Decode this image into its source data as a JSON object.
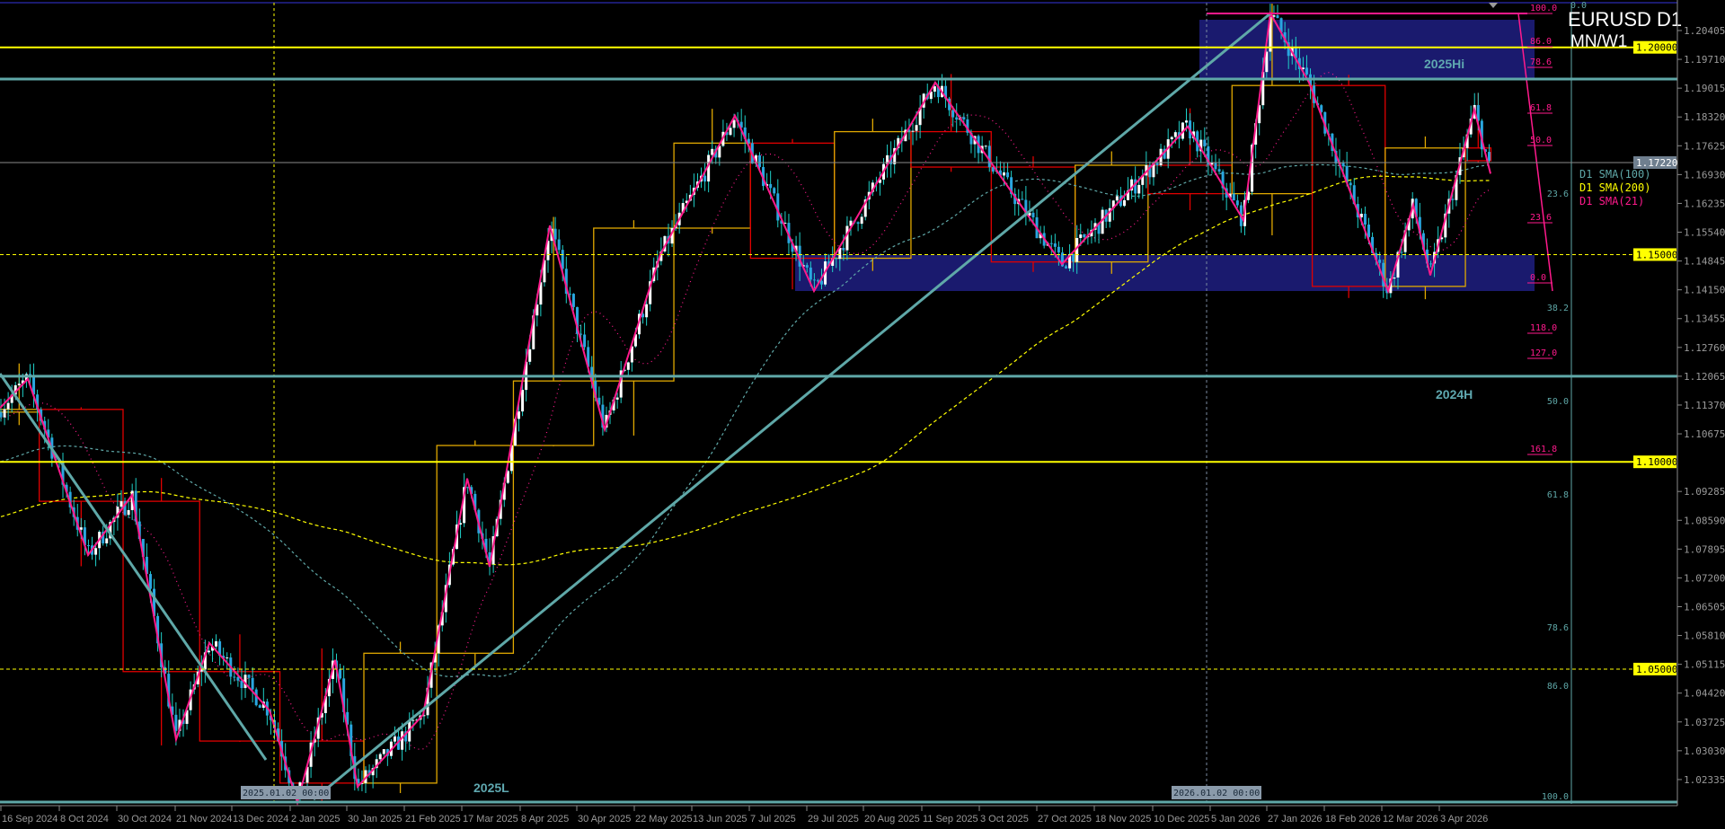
{
  "chart": {
    "symbol_title": "EURUSD D1",
    "subtitle": "MN/W1",
    "current_price": "1.17220",
    "colors": {
      "background": "#000000",
      "bull_candle": "#ffffff",
      "bear_candle": "#2aa6e0",
      "wick": "#1fd0c8",
      "zigzag": "#ff1a8c",
      "trendline": "#5fa8a8",
      "zone": "#1a1a6e",
      "level_yellow": "#ffff00",
      "month_bull": "#e0a800",
      "month_bear": "#e00000"
    }
  },
  "price_axis": {
    "labels": [
      "1.20405",
      "1.19710",
      "1.19015",
      "1.18320",
      "1.17625",
      "1.16930",
      "1.16235",
      "1.15540",
      "1.14845",
      "1.14150",
      "1.13455",
      "1.12760",
      "1.12065",
      "1.11370",
      "1.10675",
      "1.09285",
      "1.08590",
      "1.07895",
      "1.07200",
      "1.06505",
      "1.05810",
      "1.05115",
      "1.04420",
      "1.03725",
      "1.03030",
      "1.02335"
    ],
    "level_tags": [
      "1.20000",
      "1.15000",
      "1.10000",
      "1.05000"
    ]
  },
  "time_axis": {
    "labels": [
      "16 Sep 2024",
      "8 Oct 2024",
      "30 Oct 2024",
      "21 Nov 2024",
      "13 Dec 2024",
      "2 Jan 2025",
      "30 Jan 2025",
      "21 Feb 2025",
      "17 Mar 2025",
      "8 Apr 2025",
      "30 Apr 2025",
      "22 May 2025",
      "13 Jun 2025",
      "7 Jul 2025",
      "29 Jul 2025",
      "20 Aug 2025",
      "11 Sep 2025",
      "3 Oct 2025",
      "27 Oct 2025",
      "18 Nov 2025",
      "10 Dec 2025",
      "5 Jan 2026",
      "27 Jan 2026",
      "18 Feb 2026",
      "12 Mar 2026",
      "3 Apr 2026"
    ],
    "marker_labels": [
      "2025.01.02 00:00",
      "2026.01.02 00:00"
    ]
  },
  "annotations": {
    "zone_high": "2025Hi",
    "level_2024h": "2024H",
    "level_2025l": "2025L"
  },
  "indicators": {
    "sma100": "D1 SMA(100)",
    "sma200": "D1 SMA(200)",
    "sma21": "D1 SMA(21)"
  },
  "fib_pink": [
    "100.0",
    "86.0",
    "78.6",
    "61.8",
    "50.0",
    "23.6",
    "0.0",
    "118.0",
    "127.0",
    "161.8"
  ],
  "fib_teal": [
    "0.0",
    "23.6",
    "38.2",
    "50.0",
    "61.8",
    "78.6",
    "86.0",
    "100.0"
  ]
}
